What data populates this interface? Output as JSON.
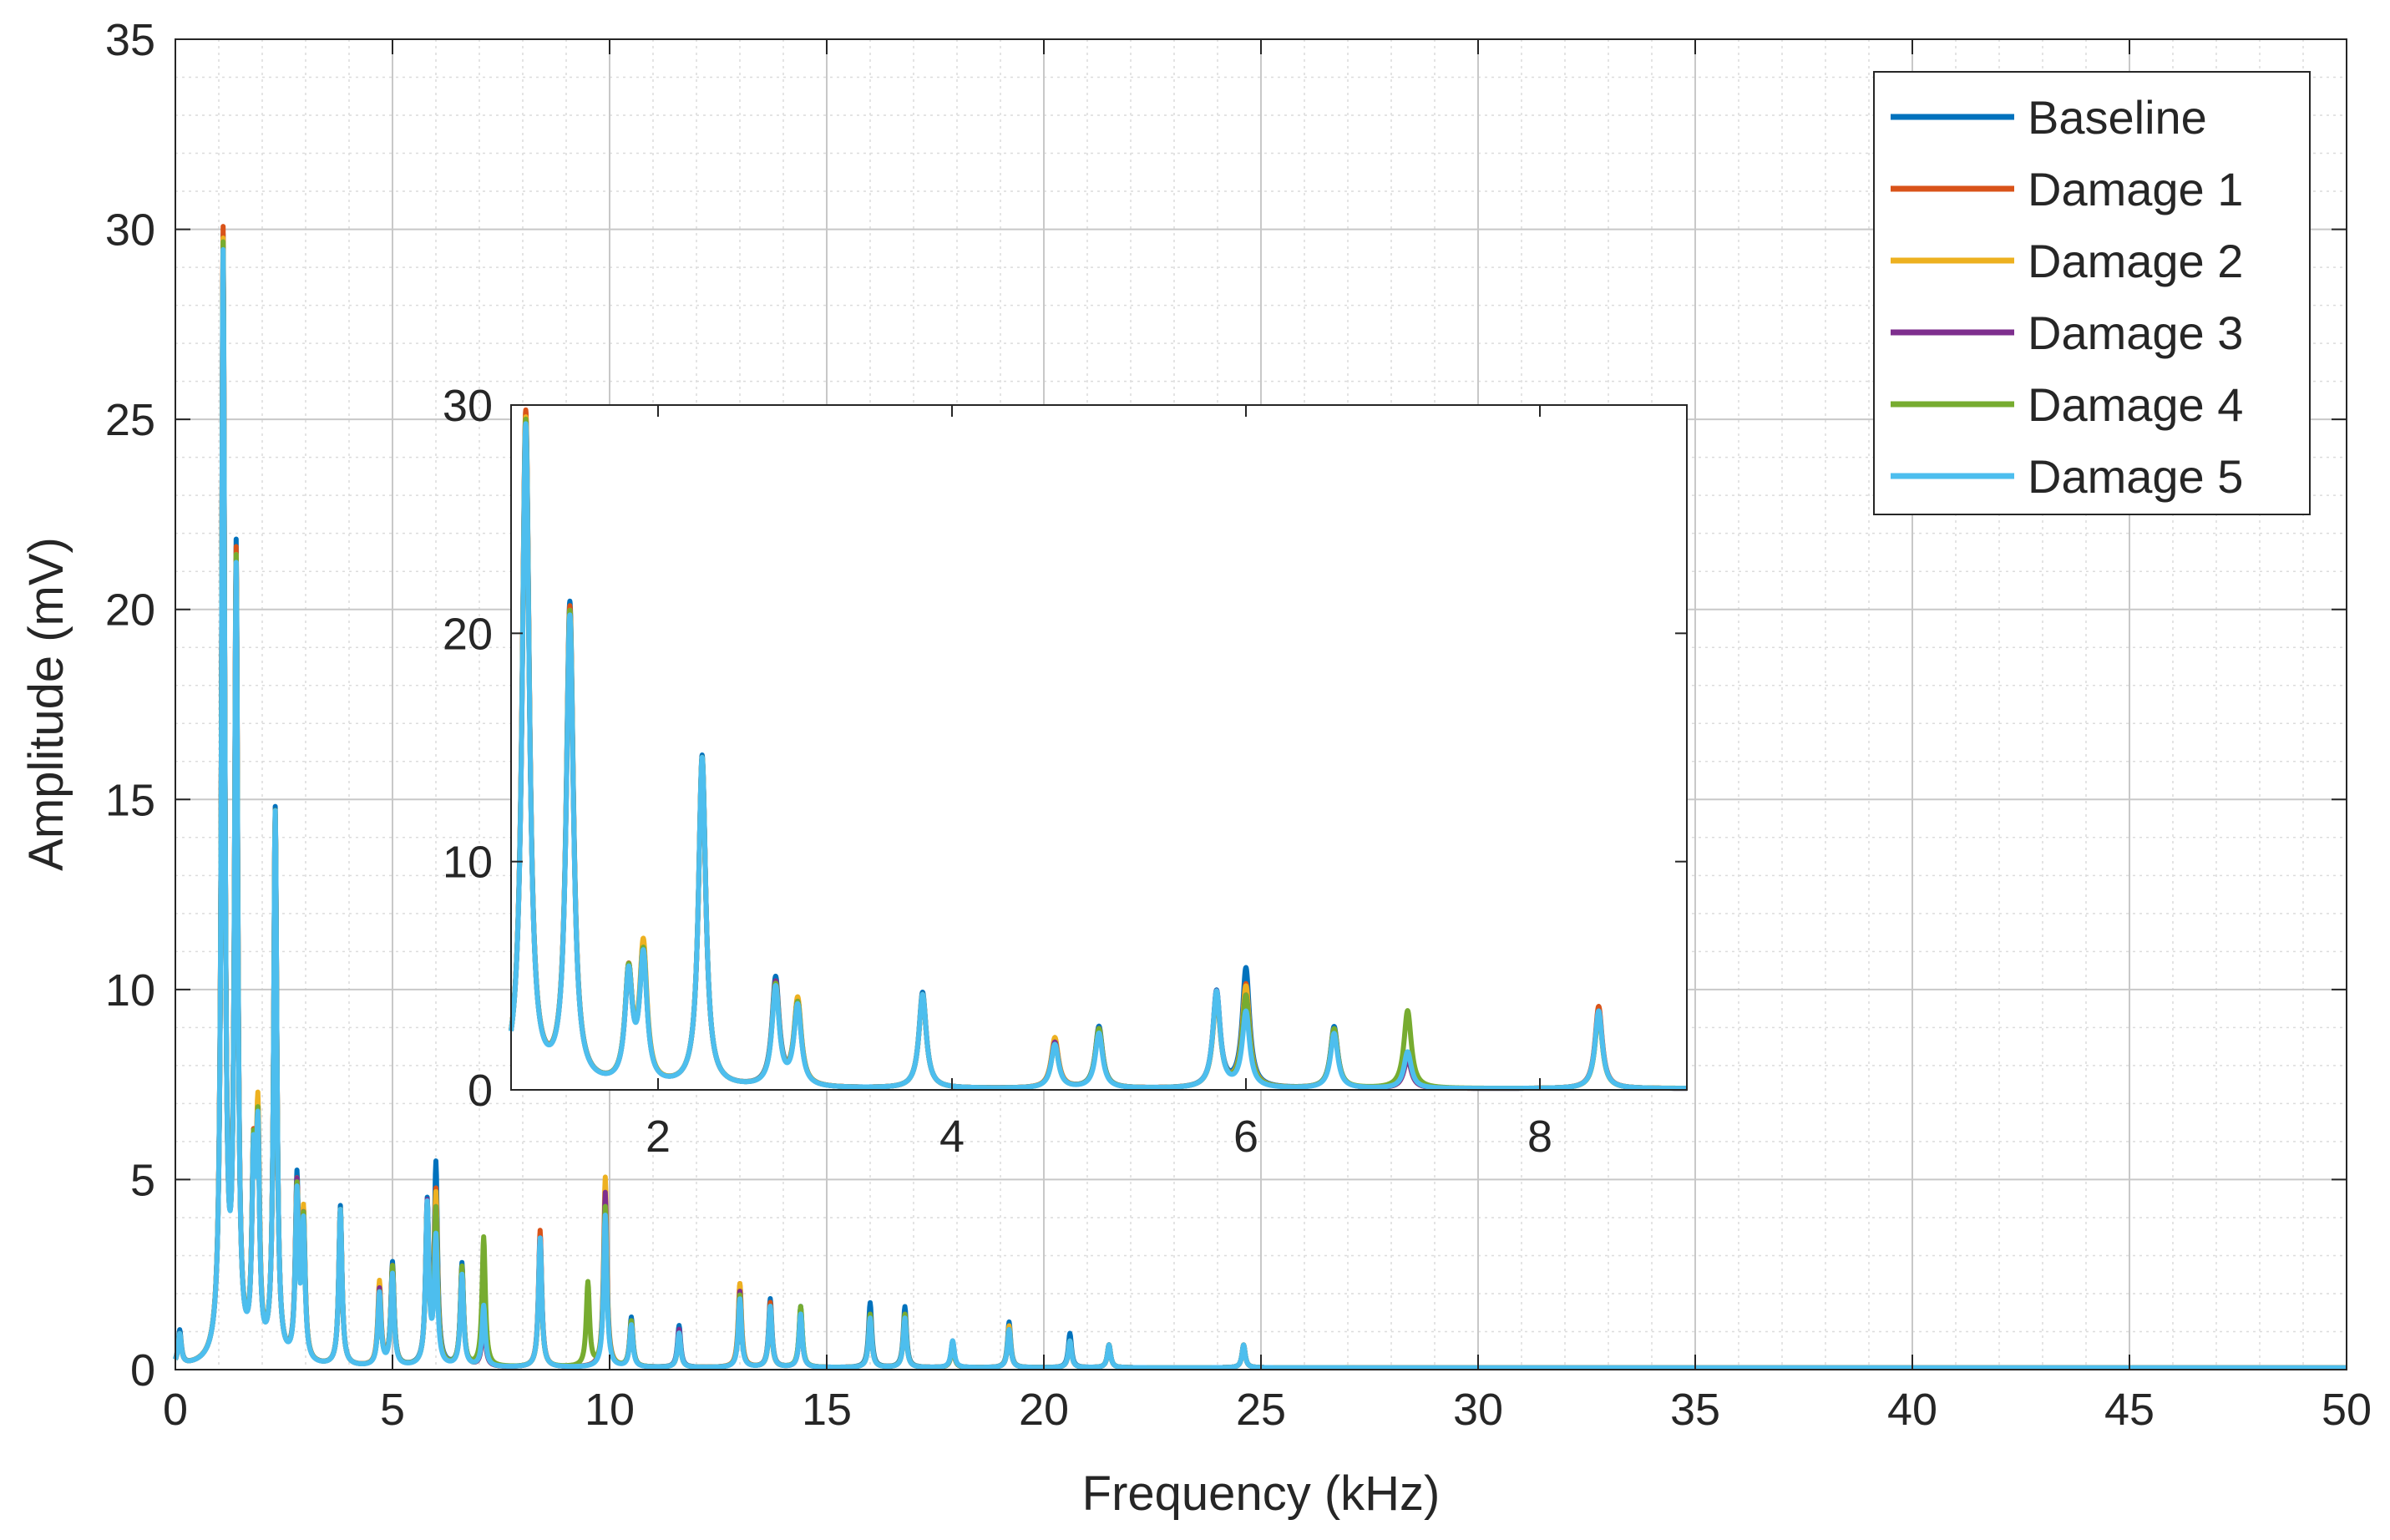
{
  "chart_data": {
    "type": "line",
    "title": "",
    "xlabel": "Frequency (kHz)",
    "ylabel": "Amplitude (mV)",
    "xlim": [
      0,
      50
    ],
    "ylim": [
      0,
      35
    ],
    "xticks": [
      0,
      5,
      10,
      15,
      20,
      25,
      30,
      35,
      40,
      45,
      50
    ],
    "yticks": [
      0,
      5,
      10,
      15,
      20,
      25,
      30,
      35
    ],
    "grid": "major and minor",
    "legend_position": "top-right",
    "series": [
      {
        "name": "Baseline",
        "color": "#0072BD",
        "peaks": [
          [
            0.1,
            0.9
          ],
          [
            1.1,
            29.3
          ],
          [
            1.4,
            21.0
          ],
          [
            1.8,
            4.8
          ],
          [
            1.9,
            5.7
          ],
          [
            2.3,
            14.5
          ],
          [
            2.8,
            4.7
          ],
          [
            2.95,
            3.7
          ],
          [
            3.8,
            4.2
          ],
          [
            4.7,
            2.0
          ],
          [
            5.0,
            2.7
          ],
          [
            5.8,
            4.2
          ],
          [
            6.0,
            5.2
          ],
          [
            6.6,
            2.7
          ],
          [
            7.1,
            1.4
          ],
          [
            8.4,
            3.5
          ],
          [
            9.9,
            4.5
          ],
          [
            10.5,
            1.3
          ],
          [
            11.6,
            1.1
          ],
          [
            13.0,
            1.8
          ],
          [
            13.7,
            1.8
          ],
          [
            14.4,
            1.6
          ],
          [
            16.0,
            1.7
          ],
          [
            16.8,
            1.6
          ],
          [
            17.9,
            0.7
          ],
          [
            19.2,
            1.2
          ],
          [
            20.6,
            0.9
          ],
          [
            21.5,
            0.6
          ],
          [
            24.6,
            0.6
          ]
        ]
      },
      {
        "name": "Damage 1",
        "color": "#D95319",
        "peaks": [
          [
            0.1,
            0.8
          ],
          [
            1.1,
            29.5
          ],
          [
            1.4,
            20.8
          ],
          [
            1.8,
            4.8
          ],
          [
            1.9,
            5.8
          ],
          [
            2.3,
            14.4
          ],
          [
            2.8,
            4.5
          ],
          [
            2.95,
            3.7
          ],
          [
            3.8,
            4.1
          ],
          [
            4.7,
            2.1
          ],
          [
            5.0,
            2.6
          ],
          [
            5.8,
            4.0
          ],
          [
            6.0,
            4.5
          ],
          [
            6.6,
            2.6
          ],
          [
            7.1,
            1.4
          ],
          [
            8.4,
            3.6
          ],
          [
            9.9,
            4.3
          ],
          [
            10.5,
            1.2
          ],
          [
            11.6,
            0.9
          ],
          [
            13.0,
            2.2
          ],
          [
            13.7,
            1.7
          ],
          [
            14.4,
            1.5
          ],
          [
            16.0,
            1.4
          ],
          [
            16.8,
            1.4
          ],
          [
            17.9,
            0.6
          ],
          [
            19.2,
            1.0
          ],
          [
            20.6,
            0.7
          ],
          [
            21.5,
            0.6
          ],
          [
            24.6,
            0.6
          ]
        ]
      },
      {
        "name": "Damage 2",
        "color": "#EDB120",
        "peaks": [
          [
            0.1,
            0.8
          ],
          [
            1.1,
            29.2
          ],
          [
            1.4,
            20.6
          ],
          [
            1.8,
            4.7
          ],
          [
            1.9,
            6.0
          ],
          [
            2.3,
            14.3
          ],
          [
            2.8,
            4.4
          ],
          [
            2.95,
            3.8
          ],
          [
            3.8,
            4.1
          ],
          [
            4.7,
            2.2
          ],
          [
            5.0,
            2.5
          ],
          [
            5.8,
            4.1
          ],
          [
            6.0,
            4.4
          ],
          [
            6.6,
            2.5
          ],
          [
            7.1,
            1.3
          ],
          [
            8.4,
            3.3
          ],
          [
            9.9,
            5.0
          ],
          [
            10.5,
            1.2
          ],
          [
            11.6,
            0.9
          ],
          [
            13.0,
            2.2
          ],
          [
            13.7,
            1.5
          ],
          [
            14.4,
            1.4
          ],
          [
            16.0,
            1.3
          ],
          [
            16.8,
            1.3
          ],
          [
            17.9,
            0.6
          ],
          [
            19.2,
            1.1
          ],
          [
            20.6,
            0.7
          ],
          [
            21.5,
            0.6
          ],
          [
            24.6,
            0.6
          ]
        ]
      },
      {
        "name": "Damage 3",
        "color": "#7E2F8E",
        "peaks": [
          [
            0.1,
            0.8
          ],
          [
            1.1,
            29.0
          ],
          [
            1.4,
            20.5
          ],
          [
            1.8,
            4.7
          ],
          [
            1.9,
            5.6
          ],
          [
            2.3,
            14.3
          ],
          [
            2.8,
            4.5
          ],
          [
            2.95,
            3.6
          ],
          [
            3.8,
            4.1
          ],
          [
            4.7,
            2.0
          ],
          [
            5.0,
            2.6
          ],
          [
            5.8,
            4.2
          ],
          [
            6.0,
            4.0
          ],
          [
            6.6,
            2.6
          ],
          [
            7.1,
            1.3
          ],
          [
            8.4,
            3.4
          ],
          [
            9.9,
            4.6
          ],
          [
            10.5,
            1.2
          ],
          [
            11.6,
            1.0
          ],
          [
            13.0,
            2.0
          ],
          [
            13.7,
            1.6
          ],
          [
            14.4,
            1.4
          ],
          [
            16.0,
            1.4
          ],
          [
            16.8,
            1.4
          ],
          [
            17.9,
            0.6
          ],
          [
            19.2,
            1.0
          ],
          [
            20.6,
            0.7
          ],
          [
            21.5,
            0.6
          ],
          [
            24.6,
            0.6
          ]
        ]
      },
      {
        "name": "Damage 4",
        "color": "#77AC30",
        "peaks": [
          [
            0.1,
            0.8
          ],
          [
            1.1,
            29.1
          ],
          [
            1.4,
            20.6
          ],
          [
            1.8,
            4.8
          ],
          [
            1.9,
            5.6
          ],
          [
            2.3,
            14.4
          ],
          [
            2.8,
            4.4
          ],
          [
            2.95,
            3.6
          ],
          [
            3.8,
            4.1
          ],
          [
            4.7,
            1.9
          ],
          [
            5.0,
            2.6
          ],
          [
            5.8,
            4.1
          ],
          [
            6.0,
            4.0
          ],
          [
            6.6,
            2.6
          ],
          [
            7.1,
            3.4
          ],
          [
            8.4,
            3.3
          ],
          [
            9.5,
            2.2
          ],
          [
            9.9,
            4.2
          ],
          [
            10.5,
            1.2
          ],
          [
            11.6,
            0.9
          ],
          [
            13.0,
            1.9
          ],
          [
            13.7,
            1.6
          ],
          [
            14.4,
            1.6
          ],
          [
            16.0,
            1.4
          ],
          [
            16.8,
            1.4
          ],
          [
            17.9,
            0.6
          ],
          [
            19.2,
            1.0
          ],
          [
            20.6,
            0.7
          ],
          [
            21.5,
            0.6
          ],
          [
            24.6,
            0.6
          ]
        ]
      },
      {
        "name": "Damage 5",
        "color": "#4DBEEE",
        "peaks": [
          [
            0.1,
            0.8
          ],
          [
            1.1,
            28.9
          ],
          [
            1.4,
            20.4
          ],
          [
            1.8,
            4.7
          ],
          [
            1.9,
            5.5
          ],
          [
            2.3,
            14.4
          ],
          [
            2.8,
            4.3
          ],
          [
            2.95,
            3.5
          ],
          [
            3.8,
            4.1
          ],
          [
            4.7,
            1.9
          ],
          [
            5.0,
            2.4
          ],
          [
            5.8,
            4.2
          ],
          [
            6.0,
            3.3
          ],
          [
            6.6,
            2.4
          ],
          [
            7.1,
            1.6
          ],
          [
            8.4,
            3.4
          ],
          [
            9.9,
            4.0
          ],
          [
            10.5,
            1.1
          ],
          [
            11.6,
            0.9
          ],
          [
            13.0,
            1.8
          ],
          [
            13.7,
            1.6
          ],
          [
            14.4,
            1.4
          ],
          [
            16.0,
            1.3
          ],
          [
            16.8,
            1.3
          ],
          [
            17.9,
            0.7
          ],
          [
            19.2,
            1.0
          ],
          [
            20.6,
            0.7
          ],
          [
            21.5,
            0.6
          ],
          [
            24.6,
            0.6
          ]
        ]
      }
    ],
    "inset": {
      "xlim": [
        1,
        9
      ],
      "ylim": [
        0,
        30
      ],
      "xticks": [
        2,
        4,
        6,
        8
      ],
      "yticks": [
        0,
        10,
        20,
        30
      ]
    }
  }
}
